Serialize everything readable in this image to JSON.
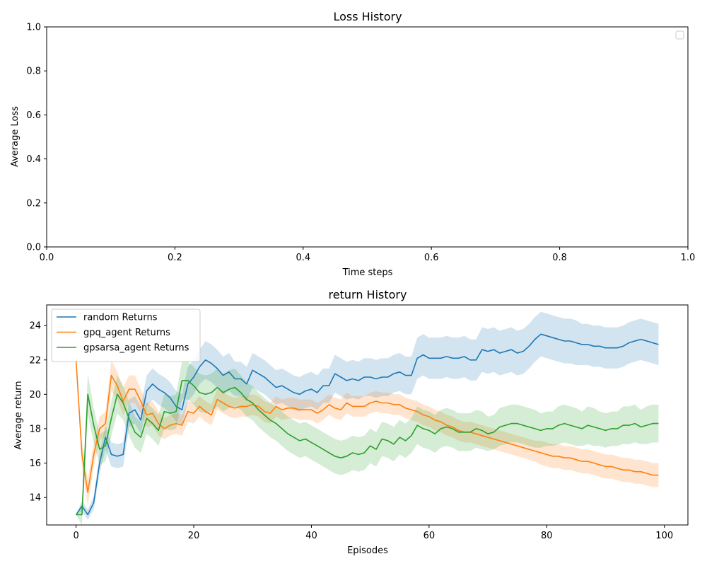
{
  "chart_data": [
    {
      "type": "line",
      "title": "Loss History",
      "xlabel": "Time steps",
      "ylabel": "Average Loss",
      "xlim": [
        0,
        1
      ],
      "ylim": [
        0,
        1
      ],
      "xticks": [
        "0.0",
        "0.2",
        "0.4",
        "0.6",
        "0.8",
        "1.0"
      ],
      "yticks": [
        "0.0",
        "0.2",
        "0.4",
        "0.6",
        "0.8",
        "1.0"
      ],
      "grid": false,
      "legend": "upper-right (empty)",
      "series": []
    },
    {
      "type": "line",
      "title": "return History",
      "xlabel": "Episodes",
      "ylabel": "Average return",
      "xlim": [
        -5,
        104
      ],
      "ylim": [
        12.4,
        25.2
      ],
      "xticks": [
        "0",
        "20",
        "40",
        "60",
        "80",
        "100"
      ],
      "yticks": [
        "14",
        "16",
        "18",
        "20",
        "22",
        "24"
      ],
      "grid": false,
      "legend": "upper-left",
      "series": [
        {
          "name": "random Returns",
          "color": "#1f77b4",
          "band_color": "rgba(31,119,180,0.2)",
          "x_start": 0,
          "values": [
            13.0,
            13.5,
            13.0,
            13.7,
            16.0,
            17.5,
            16.5,
            16.4,
            16.5,
            18.9,
            19.1,
            18.5,
            20.2,
            20.6,
            20.3,
            20.1,
            19.8,
            19.3,
            19.1,
            20.6,
            21.0,
            21.6,
            22.0,
            21.8,
            21.5,
            21.1,
            21.3,
            20.9,
            20.9,
            20.6,
            21.4,
            21.2,
            21.0,
            20.7,
            20.4,
            20.5,
            20.3,
            20.1,
            20.0,
            20.2,
            20.3,
            20.1,
            20.5,
            20.5,
            21.2,
            21.0,
            20.8,
            20.9,
            20.8,
            21.0,
            21.0,
            20.9,
            21.0,
            21.0,
            21.2,
            21.3,
            21.1,
            21.1,
            22.1,
            22.3,
            22.1,
            22.1,
            22.1,
            22.2,
            22.1,
            22.1,
            22.2,
            22.0,
            22.0,
            22.6,
            22.5,
            22.6,
            22.4,
            22.5,
            22.6,
            22.4,
            22.5,
            22.8,
            23.2,
            23.5,
            23.4,
            23.3,
            23.2,
            23.1,
            23.1,
            23.0,
            22.9,
            22.9,
            22.8,
            22.8,
            22.7,
            22.7,
            22.7,
            22.8,
            23.0,
            23.1,
            23.2,
            23.1,
            23.0,
            22.9
          ],
          "band_width": [
            0.0,
            0.3,
            0.3,
            0.4,
            0.6,
            0.7,
            0.7,
            0.7,
            0.7,
            0.8,
            0.8,
            0.8,
            0.9,
            0.9,
            0.9,
            0.9,
            0.9,
            0.9,
            0.9,
            1.0,
            1.0,
            1.0,
            1.1,
            1.1,
            1.1,
            1.1,
            1.1,
            1.0,
            1.0,
            1.0,
            1.0,
            1.0,
            1.0,
            1.0,
            1.0,
            1.0,
            1.0,
            1.0,
            1.0,
            1.0,
            1.0,
            1.0,
            1.0,
            1.0,
            1.1,
            1.1,
            1.1,
            1.1,
            1.1,
            1.1,
            1.1,
            1.1,
            1.1,
            1.1,
            1.1,
            1.1,
            1.1,
            1.1,
            1.2,
            1.2,
            1.2,
            1.2,
            1.2,
            1.2,
            1.2,
            1.2,
            1.2,
            1.2,
            1.2,
            1.3,
            1.3,
            1.3,
            1.3,
            1.3,
            1.3,
            1.3,
            1.3,
            1.3,
            1.3,
            1.3,
            1.3,
            1.3,
            1.3,
            1.3,
            1.3,
            1.3,
            1.2,
            1.2,
            1.2,
            1.2,
            1.2,
            1.2,
            1.2,
            1.2,
            1.2,
            1.2,
            1.2,
            1.2,
            1.2,
            1.2
          ]
        },
        {
          "name": "gpq_agent Returns",
          "color": "#ff7f0e",
          "band_color": "rgba(255,127,14,0.2)",
          "x_start": 0,
          "values": [
            22.0,
            16.5,
            14.3,
            16.5,
            18.0,
            18.3,
            21.1,
            20.5,
            19.6,
            20.3,
            20.3,
            19.6,
            18.8,
            18.9,
            18.3,
            18.0,
            18.2,
            18.3,
            18.2,
            19.0,
            18.9,
            19.3,
            19.0,
            18.8,
            19.7,
            19.5,
            19.3,
            19.2,
            19.3,
            19.3,
            19.4,
            19.3,
            19.0,
            18.9,
            19.3,
            19.1,
            19.2,
            19.2,
            19.1,
            19.1,
            19.1,
            18.9,
            19.1,
            19.4,
            19.2,
            19.1,
            19.5,
            19.3,
            19.3,
            19.3,
            19.5,
            19.6,
            19.5,
            19.5,
            19.4,
            19.4,
            19.2,
            19.1,
            19.0,
            18.8,
            18.7,
            18.5,
            18.4,
            18.2,
            18.1,
            17.9,
            17.8,
            17.8,
            17.7,
            17.6,
            17.5,
            17.4,
            17.3,
            17.2,
            17.1,
            17.0,
            16.9,
            16.8,
            16.7,
            16.6,
            16.5,
            16.4,
            16.4,
            16.3,
            16.3,
            16.2,
            16.1,
            16.1,
            16.0,
            15.9,
            15.8,
            15.8,
            15.7,
            15.6,
            15.6,
            15.5,
            15.5,
            15.4,
            15.3,
            15.3
          ],
          "band_width": [
            0.0,
            0.8,
            0.8,
            0.7,
            0.7,
            0.7,
            0.9,
            0.8,
            0.8,
            0.8,
            0.8,
            0.7,
            0.7,
            0.7,
            0.7,
            0.6,
            0.6,
            0.6,
            0.6,
            0.6,
            0.6,
            0.6,
            0.6,
            0.6,
            0.6,
            0.6,
            0.6,
            0.6,
            0.6,
            0.6,
            0.6,
            0.6,
            0.6,
            0.6,
            0.6,
            0.6,
            0.6,
            0.6,
            0.6,
            0.6,
            0.6,
            0.6,
            0.6,
            0.6,
            0.6,
            0.6,
            0.6,
            0.6,
            0.6,
            0.6,
            0.6,
            0.6,
            0.6,
            0.6,
            0.6,
            0.6,
            0.6,
            0.6,
            0.6,
            0.6,
            0.6,
            0.6,
            0.6,
            0.6,
            0.6,
            0.6,
            0.6,
            0.6,
            0.6,
            0.6,
            0.6,
            0.6,
            0.6,
            0.6,
            0.6,
            0.6,
            0.6,
            0.6,
            0.6,
            0.7,
            0.7,
            0.7,
            0.7,
            0.7,
            0.7,
            0.7,
            0.7,
            0.7,
            0.7,
            0.7,
            0.7,
            0.7,
            0.7,
            0.7,
            0.7,
            0.7,
            0.7,
            0.7,
            0.7,
            0.7
          ]
        },
        {
          "name": "gpsarsa_agent Returns",
          "color": "#2ca02c",
          "band_color": "rgba(44,160,44,0.2)",
          "x_start": 0,
          "values": [
            13.0,
            13.0,
            20.0,
            18.2,
            16.8,
            17.0,
            18.6,
            20.0,
            19.5,
            18.6,
            17.8,
            17.5,
            18.6,
            18.3,
            17.9,
            19.0,
            18.9,
            19.0,
            20.8,
            20.8,
            20.5,
            20.1,
            20.0,
            20.1,
            20.4,
            20.1,
            20.3,
            20.4,
            20.1,
            19.7,
            19.5,
            19.1,
            18.8,
            18.5,
            18.3,
            18.0,
            17.7,
            17.5,
            17.3,
            17.4,
            17.2,
            17.0,
            16.8,
            16.6,
            16.4,
            16.3,
            16.4,
            16.6,
            16.5,
            16.6,
            17.0,
            16.8,
            17.4,
            17.3,
            17.1,
            17.5,
            17.3,
            17.6,
            18.2,
            18.0,
            17.9,
            17.7,
            18.0,
            18.1,
            18.0,
            17.8,
            17.8,
            17.8,
            18.0,
            17.9,
            17.7,
            17.8,
            18.1,
            18.2,
            18.3,
            18.3,
            18.2,
            18.1,
            18.0,
            17.9,
            18.0,
            18.0,
            18.2,
            18.3,
            18.2,
            18.1,
            18.0,
            18.2,
            18.1,
            18.0,
            17.9,
            18.0,
            18.0,
            18.2,
            18.2,
            18.3,
            18.1,
            18.2,
            18.3,
            18.3
          ],
          "band_width": [
            0.0,
            0.6,
            1.2,
            1.0,
            0.9,
            0.9,
            1.0,
            1.1,
            1.0,
            1.0,
            0.9,
            0.9,
            0.9,
            0.9,
            0.9,
            1.0,
            1.0,
            1.0,
            1.1,
            1.1,
            1.1,
            1.1,
            1.1,
            1.1,
            1.1,
            1.1,
            1.1,
            1.1,
            1.0,
            1.0,
            1.0,
            1.0,
            1.0,
            1.0,
            1.0,
            1.0,
            1.0,
            1.0,
            1.0,
            1.0,
            1.0,
            1.0,
            1.0,
            1.0,
            1.0,
            1.0,
            1.0,
            1.0,
            1.0,
            1.0,
            1.0,
            1.0,
            1.0,
            1.0,
            1.0,
            1.0,
            1.0,
            1.0,
            1.1,
            1.1,
            1.1,
            1.1,
            1.1,
            1.1,
            1.1,
            1.1,
            1.1,
            1.1,
            1.1,
            1.1,
            1.0,
            1.0,
            1.1,
            1.1,
            1.1,
            1.1,
            1.1,
            1.1,
            1.1,
            1.0,
            1.0,
            1.0,
            1.1,
            1.1,
            1.1,
            1.1,
            1.0,
            1.1,
            1.1,
            1.0,
            1.0,
            1.0,
            1.0,
            1.1,
            1.1,
            1.1,
            1.0,
            1.1,
            1.1,
            1.1
          ]
        }
      ]
    }
  ]
}
